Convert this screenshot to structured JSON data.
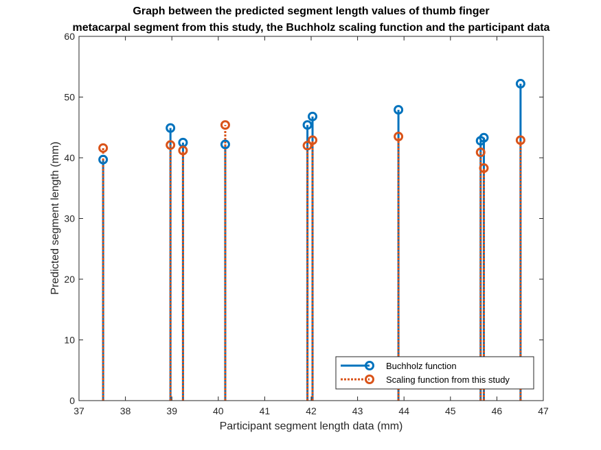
{
  "chart_data": {
    "type": "stem",
    "title": [
      "Graph between the predicted segment length values of thumb finger",
      "metacarpal segment from this study, the Buchholz scaling function and the participant data"
    ],
    "xlabel": "Participant segment length data (mm)",
    "ylabel": "Predicted segment length (mm)",
    "xlim": [
      37,
      47
    ],
    "ylim": [
      0,
      60
    ],
    "xticks": [
      "37",
      "38",
      "39",
      "40",
      "41",
      "42",
      "43",
      "44",
      "45",
      "46",
      "47"
    ],
    "yticks": [
      "0",
      "10",
      "20",
      "30",
      "40",
      "50",
      "60"
    ],
    "grid": false,
    "legend_position": "bottom-right",
    "x": [
      37.52,
      38.97,
      39.24,
      40.15,
      41.92,
      42.03,
      43.88,
      45.65,
      45.72,
      46.51
    ],
    "series": [
      {
        "name": "Buchholz function",
        "color": "#0072BD",
        "line_style": "solid",
        "marker": "circle",
        "values": [
          39.7,
          44.9,
          42.5,
          42.2,
          45.4,
          46.8,
          47.9,
          42.8,
          43.3,
          52.2
        ]
      },
      {
        "name": "Scaling function from this study",
        "color": "#D95319",
        "line_style": "dotted",
        "marker": "circle",
        "values": [
          41.6,
          42.1,
          41.2,
          45.4,
          42.0,
          42.9,
          43.5,
          40.9,
          38.3,
          42.9
        ]
      }
    ]
  }
}
